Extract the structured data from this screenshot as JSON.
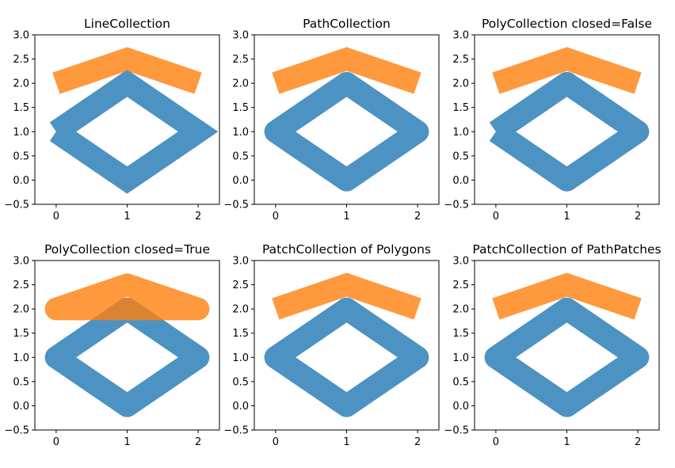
{
  "chart_data": [
    {
      "type": "line",
      "title": "LineCollection",
      "xlabel": "",
      "ylabel": "",
      "xlim": [
        -0.3,
        2.3
      ],
      "ylim": [
        -0.5,
        3.0
      ],
      "xticks": [
        0,
        1,
        2
      ],
      "yticks": [
        -0.5,
        0.0,
        0.5,
        1.0,
        1.5,
        2.0,
        2.5,
        3.0
      ],
      "xtick_labels": [
        "0",
        "1",
        "2"
      ],
      "ytick_labels": [
        "−0.5",
        "0.0",
        "0.5",
        "1.0",
        "1.5",
        "2.0",
        "2.5",
        "3.0"
      ],
      "series": [
        {
          "name": "diamond",
          "x": [
            0,
            1,
            2,
            1,
            0
          ],
          "y": [
            1,
            0,
            1,
            2,
            1
          ],
          "color": "#1f77b4",
          "alpha": 0.8,
          "closed": false,
          "joinstyle": "miter",
          "capstyle": "butt"
        },
        {
          "name": "chevron",
          "x": [
            0,
            1,
            2
          ],
          "y": [
            2,
            2.5,
            2
          ],
          "color": "#ff7f0e",
          "alpha": 0.8,
          "closed": false,
          "joinstyle": "miter",
          "capstyle": "butt"
        }
      ]
    },
    {
      "type": "line",
      "title": "PathCollection",
      "xlabel": "",
      "ylabel": "",
      "xlim": [
        -0.3,
        2.3
      ],
      "ylim": [
        -0.5,
        3.0
      ],
      "xticks": [
        0,
        1,
        2
      ],
      "yticks": [
        -0.5,
        0.0,
        0.5,
        1.0,
        1.5,
        2.0,
        2.5,
        3.0
      ],
      "xtick_labels": [
        "0",
        "1",
        "2"
      ],
      "ytick_labels": [
        "−0.5",
        "0.0",
        "0.5",
        "1.0",
        "1.5",
        "2.0",
        "2.5",
        "3.0"
      ],
      "series": [
        {
          "name": "diamond",
          "x": [
            0,
            1,
            2,
            1
          ],
          "y": [
            1,
            0,
            1,
            2
          ],
          "color": "#1f77b4",
          "alpha": 0.8,
          "closed": true,
          "joinstyle": "round",
          "capstyle": "round"
        },
        {
          "name": "chevron",
          "x": [
            0,
            1,
            2
          ],
          "y": [
            2,
            2.5,
            2
          ],
          "color": "#ff7f0e",
          "alpha": 0.8,
          "closed": false,
          "joinstyle": "miter",
          "capstyle": "butt"
        }
      ]
    },
    {
      "type": "line",
      "title": "PolyCollection closed=False",
      "xlabel": "",
      "ylabel": "",
      "xlim": [
        -0.3,
        2.3
      ],
      "ylim": [
        -0.5,
        3.0
      ],
      "xticks": [
        0,
        1,
        2
      ],
      "yticks": [
        -0.5,
        0.0,
        0.5,
        1.0,
        1.5,
        2.0,
        2.5,
        3.0
      ],
      "xtick_labels": [
        "0",
        "1",
        "2"
      ],
      "ytick_labels": [
        "−0.5",
        "0.0",
        "0.5",
        "1.0",
        "1.5",
        "2.0",
        "2.5",
        "3.0"
      ],
      "series": [
        {
          "name": "diamond",
          "x": [
            0,
            1,
            2,
            1,
            0
          ],
          "y": [
            1,
            0,
            1,
            2,
            1
          ],
          "color": "#1f77b4",
          "alpha": 0.8,
          "closed": false,
          "joinstyle": "round",
          "capstyle": "butt"
        },
        {
          "name": "chevron",
          "x": [
            0,
            1,
            2
          ],
          "y": [
            2,
            2.5,
            2
          ],
          "color": "#ff7f0e",
          "alpha": 0.8,
          "closed": false,
          "joinstyle": "miter",
          "capstyle": "butt"
        }
      ]
    },
    {
      "type": "line",
      "title": "PolyCollection closed=True",
      "xlabel": "",
      "ylabel": "",
      "xlim": [
        -0.3,
        2.3
      ],
      "ylim": [
        -0.5,
        3.0
      ],
      "xticks": [
        0,
        1,
        2
      ],
      "yticks": [
        -0.5,
        0.0,
        0.5,
        1.0,
        1.5,
        2.0,
        2.5,
        3.0
      ],
      "xtick_labels": [
        "0",
        "1",
        "2"
      ],
      "ytick_labels": [
        "−0.5",
        "0.0",
        "0.5",
        "1.0",
        "1.5",
        "2.0",
        "2.5",
        "3.0"
      ],
      "series": [
        {
          "name": "diamond",
          "x": [
            0,
            1,
            2,
            1
          ],
          "y": [
            1,
            0,
            1,
            2
          ],
          "color": "#1f77b4",
          "alpha": 0.8,
          "closed": true,
          "joinstyle": "round",
          "capstyle": "round"
        },
        {
          "name": "chevron",
          "x": [
            0,
            1,
            2
          ],
          "y": [
            2,
            2.5,
            2
          ],
          "color": "#ff7f0e",
          "alpha": 0.8,
          "closed": true,
          "joinstyle": "round",
          "capstyle": "round"
        }
      ]
    },
    {
      "type": "line",
      "title": "PatchCollection of Polygons",
      "xlabel": "",
      "ylabel": "",
      "xlim": [
        -0.3,
        2.3
      ],
      "ylim": [
        -0.5,
        3.0
      ],
      "xticks": [
        0,
        1,
        2
      ],
      "yticks": [
        -0.5,
        0.0,
        0.5,
        1.0,
        1.5,
        2.0,
        2.5,
        3.0
      ],
      "xtick_labels": [
        "0",
        "1",
        "2"
      ],
      "ytick_labels": [
        "−0.5",
        "0.0",
        "0.5",
        "1.0",
        "1.5",
        "2.0",
        "2.5",
        "3.0"
      ],
      "series": [
        {
          "name": "diamond",
          "x": [
            0,
            1,
            2,
            1
          ],
          "y": [
            1,
            0,
            1,
            2
          ],
          "color": "#1f77b4",
          "alpha": 0.8,
          "closed": true,
          "joinstyle": "round",
          "capstyle": "round"
        },
        {
          "name": "chevron",
          "x": [
            0,
            1,
            2
          ],
          "y": [
            2,
            2.5,
            2
          ],
          "color": "#ff7f0e",
          "alpha": 0.8,
          "closed": false,
          "joinstyle": "miter",
          "capstyle": "butt"
        }
      ]
    },
    {
      "type": "line",
      "title": "PatchCollection of PathPatches",
      "xlabel": "",
      "ylabel": "",
      "xlim": [
        -0.3,
        2.3
      ],
      "ylim": [
        -0.5,
        3.0
      ],
      "xticks": [
        0,
        1,
        2
      ],
      "yticks": [
        -0.5,
        0.0,
        0.5,
        1.0,
        1.5,
        2.0,
        2.5,
        3.0
      ],
      "xtick_labels": [
        "0",
        "1",
        "2"
      ],
      "ytick_labels": [
        "−0.5",
        "0.0",
        "0.5",
        "1.0",
        "1.5",
        "2.0",
        "2.5",
        "3.0"
      ],
      "series": [
        {
          "name": "diamond",
          "x": [
            0,
            1,
            2,
            1
          ],
          "y": [
            1,
            0,
            1,
            2
          ],
          "color": "#1f77b4",
          "alpha": 0.8,
          "closed": true,
          "joinstyle": "round",
          "capstyle": "round"
        },
        {
          "name": "chevron",
          "x": [
            0,
            1,
            2
          ],
          "y": [
            2,
            2.5,
            2
          ],
          "color": "#ff7f0e",
          "alpha": 0.8,
          "closed": false,
          "joinstyle": "miter",
          "capstyle": "butt"
        }
      ]
    }
  ]
}
